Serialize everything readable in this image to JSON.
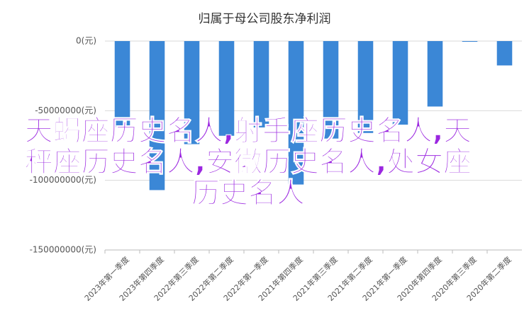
{
  "chart_data": {
    "type": "bar",
    "title": "归属于母公司股东净利润",
    "categories": [
      "2023年第一季度",
      "2023年第四季度",
      "2022年第三季度",
      "2022年第二季度",
      "2022年第一季度",
      "2021年第四季度",
      "2021年第三季度",
      "2021年第二季度",
      "2021年第一季度",
      "2020年第四季度",
      "2020年第三季度",
      "2020年第二季度"
    ],
    "values": [
      -62000000,
      -107000000,
      -74000000,
      -68000000,
      -62000000,
      -103000000,
      -70000000,
      -66000000,
      -60000000,
      -47000000,
      -500000,
      -17500000
    ],
    "color": "#3b87d6",
    "ylim": [
      -150000000,
      0
    ],
    "yticks": [
      {
        "value": 0,
        "label": "0(元)"
      },
      {
        "value": -50000000,
        "label": "-50000000(元)"
      },
      {
        "value": -100000000,
        "label": "-100000000(元)"
      },
      {
        "value": -150000000,
        "label": "-150000000(元)"
      }
    ],
    "grid": true,
    "overlay_text": "天蝎座历史名人,射手座历史名人,天秤座历史名人,安徽历史名人,处女座历史名人"
  }
}
